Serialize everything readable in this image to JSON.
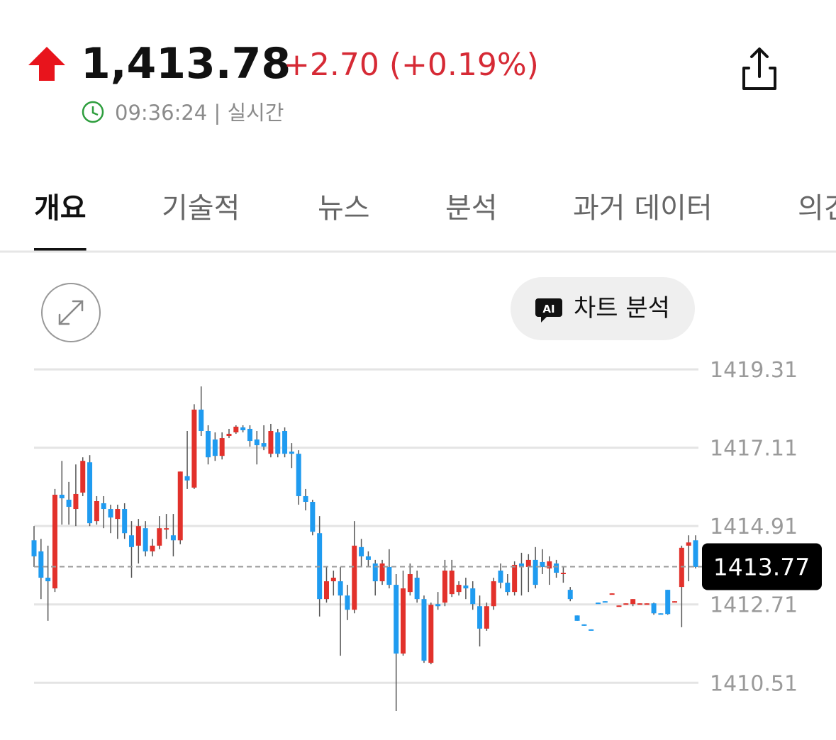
{
  "header": {
    "price": "1,413.78",
    "change": "+2.70 (+0.19%)",
    "time": "09:36:24 | 실시간"
  },
  "tabs": [
    "개요",
    "기술적",
    "뉴스",
    "분석",
    "과거 데이터",
    "의견"
  ],
  "active_tab": 0,
  "ai_badge": "AI",
  "ai_button": "차트 분석",
  "chart_data": {
    "type": "candlestick",
    "ylim": [
      1409.58,
      1419.63
    ],
    "yticks": [
      1410.51,
      1412.71,
      1414.91,
      1417.11,
      1419.31
    ],
    "grid": true,
    "up_color": "#e2312b",
    "down_color": "#1f9bf0",
    "last_price": 1413.77,
    "open": [
      1414.51,
      1414.2,
      1413.46,
      1413.16,
      1415.79,
      1415.65,
      1415.39,
      1415.85,
      1416.7,
      1415.05,
      1415.55,
      1415.39,
      1415.11,
      1415.39,
      1414.65,
      1414.36,
      1414.85,
      1414.2,
      1414.36,
      1414.85,
      1414.65,
      1414.51,
      1416.31,
      1415.99,
      1418.18,
      1417.58,
      1417.34,
      1416.88,
      1417.44,
      1417.54,
      1417.68,
      1417.64,
      1417.34,
      1417.24,
      1416.94,
      1417.54,
      1417.58,
      1417.0,
      1416.94,
      1415.75,
      1415.59,
      1414.71,
      1412.86,
      1413.36,
      1413.36,
      1412.96,
      1412.56,
      1414.32,
      1414.06,
      1413.86,
      1413.36,
      1413.76,
      1413.26,
      1411.33,
      1413.06,
      1413.46,
      1412.86,
      1411.07,
      1412.72,
      1412.76,
      1413.0,
      1413.06,
      1413.24,
      1413.16,
      1412.66,
      1412.03,
      1412.66,
      1413.66,
      1413.32,
      1413.06,
      1413.86,
      1413.76,
      1413.96,
      1413.9,
      1413.72,
      1413.86,
      1413.56,
      1413.12,
      1412.4,
      1412.15,
      1412.01,
      1412.76,
      1412.8,
      1413.0,
      1412.66,
      1412.72,
      1412.72,
      1412.72,
      1412.72,
      1412.74,
      1412.46,
      1413.12,
      1412.78,
      1413.2,
      1414.36,
      1414.51
    ],
    "high": [
      1414.91,
      1414.55,
      1414.36,
      1415.95,
      1416.74,
      1416.15,
      1416.64,
      1416.84,
      1416.9,
      1415.75,
      1415.75,
      1415.51,
      1415.51,
      1415.55,
      1415.05,
      1415.11,
      1415.05,
      1414.55,
      1415.19,
      1415.25,
      1415.25,
      1416.44,
      1417.58,
      1418.33,
      1418.83,
      1417.74,
      1417.54,
      1417.54,
      1417.64,
      1417.74,
      1417.74,
      1417.74,
      1417.58,
      1417.74,
      1417.78,
      1417.64,
      1417.68,
      1417.24,
      1417.04,
      1415.95,
      1415.65,
      1415.19,
      1413.76,
      1413.66,
      1413.76,
      1413.26,
      1415.05,
      1414.55,
      1414.2,
      1413.96,
      1413.96,
      1414.26,
      1413.56,
      1413.66,
      1413.86,
      1413.66,
      1412.96,
      1412.76,
      1413.06,
      1413.96,
      1413.96,
      1413.36,
      1413.46,
      1413.36,
      1412.96,
      1412.76,
      1413.46,
      1413.86,
      1413.56,
      1413.92,
      1414.16,
      1414.12,
      1414.32,
      1414.26,
      1414.06,
      1413.96,
      1413.76,
      1413.2,
      1412.4,
      1412.15,
      1412.01,
      1412.76,
      1412.8,
      1413.02,
      1412.68,
      1412.74,
      1412.86,
      1412.74,
      1412.74,
      1412.76,
      1412.46,
      1413.12,
      1412.8,
      1414.36,
      1414.65,
      1414.65
    ],
    "low": [
      1413.76,
      1412.86,
      1412.25,
      1413.06,
      1414.95,
      1414.95,
      1414.91,
      1415.75,
      1414.91,
      1414.95,
      1414.85,
      1414.71,
      1414.55,
      1414.55,
      1413.46,
      1413.86,
      1414.06,
      1414.06,
      1414.26,
      1414.55,
      1414.06,
      1414.4,
      1415.95,
      1415.95,
      1417.44,
      1416.64,
      1416.74,
      1416.78,
      1417.38,
      1417.5,
      1417.54,
      1417.14,
      1416.64,
      1417.04,
      1416.84,
      1416.84,
      1416.84,
      1416.54,
      1415.51,
      1415.35,
      1414.65,
      1412.37,
      1412.76,
      1412.96,
      1411.27,
      1412.27,
      1412.46,
      1413.76,
      1413.76,
      1412.96,
      1413.26,
      1413.16,
      1409.72,
      1411.27,
      1412.96,
      1412.76,
      1411.07,
      1411.03,
      1412.56,
      1412.66,
      1412.92,
      1412.96,
      1412.86,
      1412.56,
      1411.53,
      1411.97,
      1412.56,
      1413.16,
      1412.96,
      1412.96,
      1412.96,
      1413.06,
      1413.16,
      1413.56,
      1413.26,
      1413.46,
      1413.32,
      1412.8,
      1412.25,
      1412.11,
      1411.99,
      1412.74,
      1412.78,
      1413.0,
      1412.66,
      1412.72,
      1412.66,
      1412.72,
      1412.72,
      1412.42,
      1412.44,
      1412.42,
      1412.78,
      1412.07,
      1413.36,
      1413.72
    ],
    "close": [
      1414.06,
      1413.46,
      1413.36,
      1415.79,
      1415.69,
      1415.45,
      1415.81,
      1416.74,
      1414.99,
      1415.61,
      1415.39,
      1415.15,
      1415.39,
      1414.71,
      1414.32,
      1414.91,
      1414.2,
      1414.36,
      1414.85,
      1414.85,
      1414.51,
      1416.44,
      1416.19,
      1418.18,
      1417.58,
      1416.84,
      1416.88,
      1417.38,
      1417.5,
      1417.7,
      1417.6,
      1417.3,
      1417.18,
      1417.14,
      1417.58,
      1416.94,
      1416.94,
      1416.94,
      1415.75,
      1415.59,
      1414.75,
      1412.86,
      1413.36,
      1413.46,
      1412.96,
      1412.56,
      1414.36,
      1414.06,
      1413.96,
      1413.36,
      1413.86,
      1413.26,
      1411.33,
      1413.16,
      1413.56,
      1412.86,
      1411.13,
      1412.7,
      1412.66,
      1413.66,
      1413.66,
      1413.26,
      1413.16,
      1412.72,
      1412.03,
      1412.66,
      1413.36,
      1413.32,
      1413.06,
      1413.82,
      1413.76,
      1413.96,
      1413.26,
      1413.76,
      1413.92,
      1413.6,
      1413.6,
      1412.86,
      1412.25,
      1412.11,
      1411.99,
      1412.74,
      1412.78,
      1413.02,
      1412.68,
      1412.74,
      1412.86,
      1412.74,
      1412.74,
      1412.46,
      1412.44,
      1412.44,
      1412.8,
      1414.3,
      1414.45,
      1413.76
    ]
  }
}
